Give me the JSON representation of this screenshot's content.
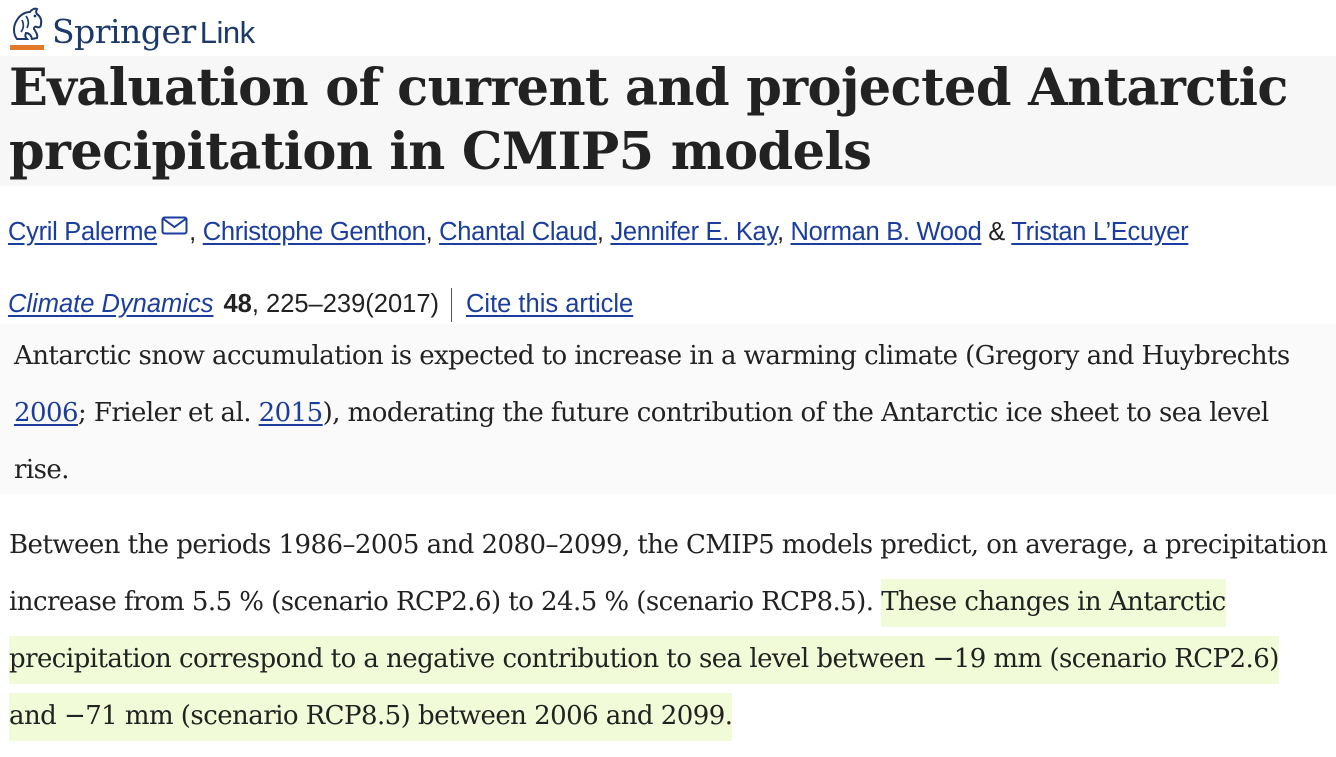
{
  "header": {
    "brand": "Springer",
    "brand_suffix": "Link",
    "logo_icon": "springer-horse-icon"
  },
  "article": {
    "title": "Evaluation of current and projected Antarctic precipitation in CMIP5 models",
    "authors": [
      {
        "name": "Cyril Palerme",
        "has_email": true
      },
      {
        "name": "Christophe Genthon"
      },
      {
        "name": "Chantal Claud"
      },
      {
        "name": "Jennifer E. Kay"
      },
      {
        "name": "Norman B. Wood"
      },
      {
        "name": "Tristan L’Ecuyer"
      }
    ],
    "separators": {
      "comma": ", ",
      "ampersand": " & "
    },
    "journal": {
      "name": "Climate Dynamics",
      "volume": "48",
      "pages_year": ", 225–239(2017)",
      "cite_label": "Cite this article"
    }
  },
  "excerpt1": {
    "part1": "Antarctic snow accumulation is expected to increase in a warming climate (Gregory and Huybrechts ",
    "ref1": "2006",
    "part2": "; Frieler et al. ",
    "ref2": "2015",
    "part3": "), moderating the future contribution of the Antarctic ice sheet to sea level rise."
  },
  "excerpt2": {
    "plain": "Between the periods 1986–2005 and 2080–2099, the CMIP5 models predict, on average, a precipitation increase from 5.5 % (scenario RCP2.6) to 24.5 % (scenario RCP8.5). ",
    "highlighted": "These changes in Antarctic precipitation correspond to a negative contribution to sea level between −19 mm (scenario RCP2.6) and −71 mm (scenario RCP8.5) between 2006 and 2099.",
    "highlight_color": "#f2fbd8"
  },
  "colors": {
    "link": "#1a3d9e",
    "brand_blue": "#1b3a6b",
    "brand_orange": "#e2782a",
    "text": "#222222"
  }
}
